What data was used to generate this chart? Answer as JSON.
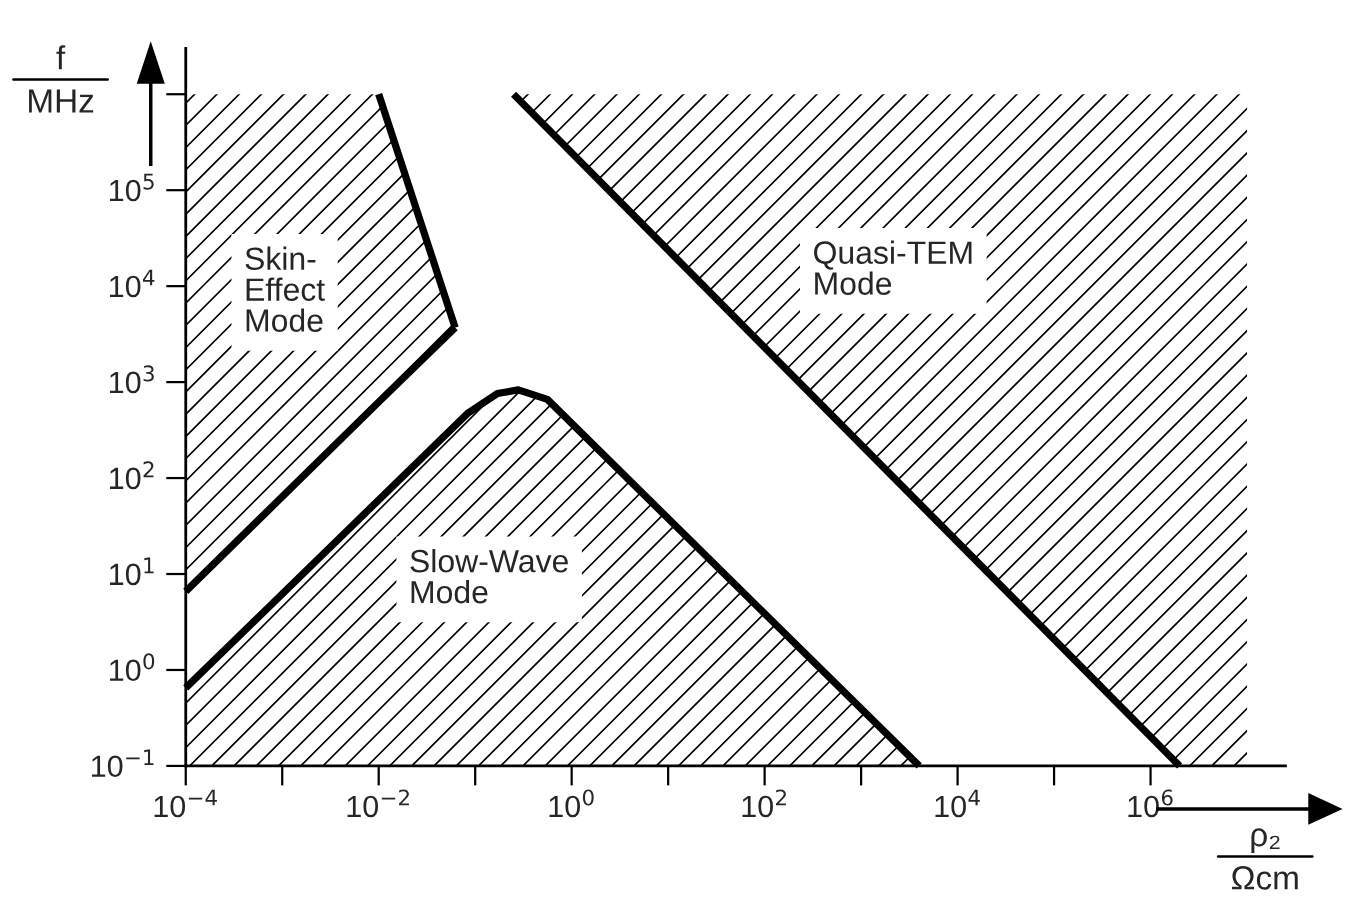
{
  "chart_data": {
    "type": "line",
    "log": "xy",
    "xlabel": "ρ₂\nΩcm",
    "ylabel": "f\nMHz",
    "xlim": [
      0.0001,
      25000000
    ],
    "ylim": [
      0.1,
      3000000
    ],
    "xticks": [
      {
        "value": 0.0001,
        "label": "10$^{−4}$"
      },
      {
        "value": 0.001,
        "label": null
      },
      {
        "value": 0.01,
        "label": "10$^{−2}$"
      },
      {
        "value": 0.1,
        "label": null
      },
      {
        "value": 1,
        "label": "10$^{0}$"
      },
      {
        "value": 10,
        "label": null
      },
      {
        "value": 100,
        "label": "10$^{2}$"
      },
      {
        "value": 1000,
        "label": null
      },
      {
        "value": 10000,
        "label": "10$^{4}$"
      },
      {
        "value": 100000,
        "label": null
      },
      {
        "value": 1000000,
        "label": "10$^{6}$"
      }
    ],
    "yticks": [
      {
        "value": 0.1,
        "label": "10$^{−1}$"
      },
      {
        "value": 1,
        "label": "10$^{0}$"
      },
      {
        "value": 10,
        "label": "10$^{1}$"
      },
      {
        "value": 100,
        "label": "10$^{2}$"
      },
      {
        "value": 1000,
        "label": "10$^{3}$"
      },
      {
        "value": 10000,
        "label": "10$^{4}$"
      },
      {
        "value": 100000,
        "label": "10$^{5}$"
      },
      {
        "value": 1000000,
        "label": null
      }
    ],
    "series": [
      {
        "color": "#000000",
        "x": [
          0.0001,
          0.01,
          0.062
        ],
        "values": [
          6.6,
          620,
          3700
        ],
        "lower": [
          6.6,
          620,
          3700
        ],
        "upper": [
          1000000,
          1000000,
          3700
        ]
      },
      {
        "color": "#000000",
        "x": [
          0.01,
          0.062
        ],
        "values": [
          1000000,
          3700
        ]
      },
      {
        "color": "#000000",
        "x": [
          0.0001,
          0.083,
          0.17,
          0.28,
          0.56,
          4000
        ],
        "values": [
          0.65,
          470,
          760,
          830,
          660,
          0.1
        ],
        "lower": [
          0.1,
          0.1,
          0.1,
          0.1,
          0.1,
          0.1
        ],
        "upper": [
          0.65,
          470,
          760,
          830,
          660,
          0.1
        ]
      },
      {
        "color": "#000000",
        "x": [
          0.25,
          2000000,
          10000000
        ],
        "values": [
          1000000,
          0.1,
          null
        ],
        "lower": [
          1000000,
          0.1,
          0.1
        ],
        "upper": [
          1000000,
          1000000,
          1000000
        ]
      }
    ],
    "annotations": [
      "Skin-\nEffect\nMode",
      "Slow-Wave\nMode",
      "Quasi-TEM\nMode"
    ]
  }
}
